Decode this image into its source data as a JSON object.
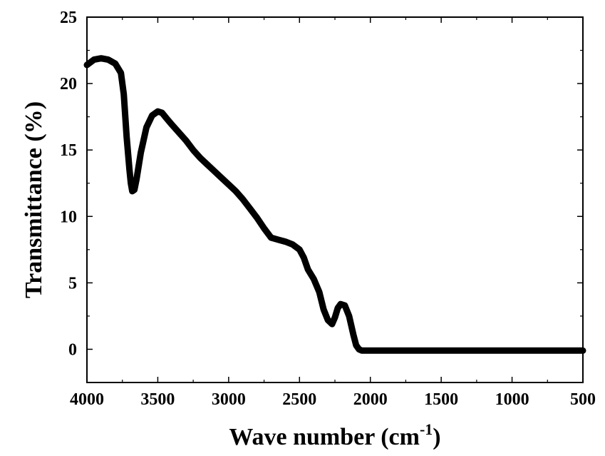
{
  "chart_data": {
    "type": "line",
    "title": "",
    "xlabel": "Wave number (cm",
    "xlabel_superscript": "-1",
    "xlabel_close": ")",
    "ylabel": "Transmittance (%)",
    "xlim": [
      4000,
      500
    ],
    "ylim": [
      -2.5,
      25
    ],
    "x_reversed": true,
    "xticks": [
      4000,
      3500,
      3000,
      2500,
      2000,
      1500,
      1000,
      500
    ],
    "yticks": [
      0,
      5,
      10,
      15,
      20,
      25
    ],
    "grid": false,
    "legend": "none",
    "line_color": "#000000",
    "series": [
      {
        "x": [
          4000,
          3950,
          3900,
          3850,
          3800,
          3760,
          3740,
          3720,
          3700,
          3690,
          3680,
          3665,
          3650,
          3620,
          3580,
          3540,
          3500,
          3470,
          3440,
          3400,
          3350,
          3300,
          3250,
          3200,
          3150,
          3100,
          3050,
          3000,
          2950,
          2900,
          2850,
          2800,
          2750,
          2700,
          2650,
          2600,
          2550,
          2500,
          2470,
          2440,
          2400,
          2360,
          2330,
          2300,
          2270,
          2250,
          2230,
          2210,
          2180,
          2150,
          2120,
          2100,
          2080,
          2060,
          2040,
          2000,
          1900,
          1800,
          1700,
          1600,
          1500,
          1400,
          1300,
          1200,
          1100,
          1000,
          900,
          800,
          700,
          600,
          500
        ],
        "y": [
          21.4,
          21.8,
          21.9,
          21.8,
          21.5,
          20.8,
          19.2,
          16.0,
          13.5,
          12.5,
          11.9,
          12.0,
          12.8,
          14.8,
          16.7,
          17.6,
          17.9,
          17.8,
          17.4,
          16.9,
          16.3,
          15.7,
          15.0,
          14.4,
          13.9,
          13.4,
          12.9,
          12.4,
          11.9,
          11.3,
          10.6,
          9.9,
          9.1,
          8.4,
          8.25,
          8.1,
          7.9,
          7.5,
          6.9,
          6.0,
          5.3,
          4.3,
          3.0,
          2.2,
          1.9,
          2.4,
          3.1,
          3.4,
          3.3,
          2.5,
          1.1,
          0.3,
          0.0,
          -0.1,
          -0.1,
          -0.1,
          -0.1,
          -0.1,
          -0.1,
          -0.1,
          -0.1,
          -0.1,
          -0.1,
          -0.1,
          -0.1,
          -0.1,
          -0.1,
          -0.1,
          -0.1,
          -0.1,
          -0.1
        ]
      }
    ]
  }
}
